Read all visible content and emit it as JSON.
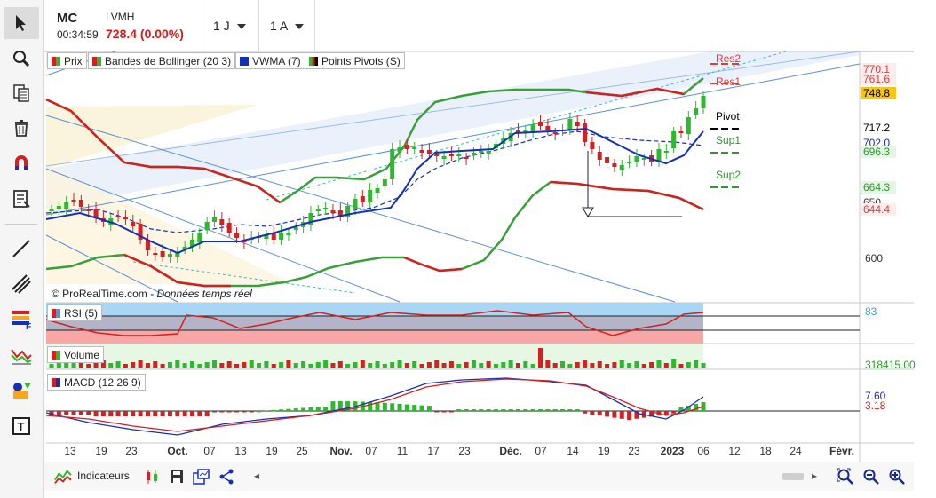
{
  "header": {
    "symbol": "MC",
    "time": "00:34:59",
    "name": "LVMH",
    "price": "728.4 (0.00%)",
    "period_interval": "1 J",
    "period_range": "1 A"
  },
  "legends": {
    "price": "Prix",
    "bollinger": "Bandes de Bollinger (20 3)",
    "vwma": "VWMA (7)",
    "pivots": "Points Pivots (S)",
    "rsi": "RSI (5)",
    "volume": "Volume",
    "macd": "MACD (12 26 9)"
  },
  "watermark": {
    "source": "© ProRealTime.com",
    "note": "- Données temps réel"
  },
  "price_axis": {
    "chips": [
      {
        "value": "770.1",
        "color": "#e23b3b",
        "bg": "#fdecec"
      },
      {
        "value": "761.6",
        "color": "#e23b3b",
        "bg": "#fdecec"
      },
      {
        "value": "748.8",
        "color": "#000000",
        "bg": "#f5c518"
      },
      {
        "value": "717.2",
        "color": "#000000",
        "bg": "#ffffff"
      },
      {
        "value": "702.0",
        "color": "#1c2fa8",
        "bg": "#ffffff"
      },
      {
        "value": "696.3",
        "color": "#2c9a2c",
        "bg": "#e6f6e6"
      },
      {
        "value": "664.3",
        "color": "#2c9a2c",
        "bg": "#e6f6e6"
      },
      {
        "value": "650",
        "color": "#333333",
        "bg": "#ffffff"
      },
      {
        "value": "644.4",
        "color": "#e23b3b",
        "bg": "#fdecec"
      }
    ],
    "tick_600": "600",
    "rsi_value": "83",
    "volume_value": "318415.00",
    "macd_value1": "7.60",
    "macd_value2": "3.18"
  },
  "pivot_labels": {
    "res2": "Res2",
    "res1": "Res1",
    "pivot": "Pivot",
    "sup1": "Sup1",
    "sup2": "Sup2"
  },
  "x_axis": [
    "13",
    "19",
    "23",
    "Oct.",
    "07",
    "13",
    "19",
    "25",
    "Nov.",
    "07",
    "11",
    "17",
    "23",
    "Déc.",
    "07",
    "14",
    "19",
    "23",
    "2023",
    "06",
    "12",
    "18",
    "24",
    "Févr."
  ],
  "bottom": {
    "indicators_label": "Indicateurs"
  },
  "icons": [
    "cursor-icon",
    "zoom-icon",
    "copy-icon",
    "trash-icon",
    "magnet-icon",
    "properties-icon",
    "line-tool-icon",
    "channel-tool-icon",
    "fibonacci-icon",
    "indicator-tool-icon",
    "shapes-icon",
    "text-tool-icon"
  ],
  "colors": {
    "up": "#2db82d",
    "down": "#d42020",
    "vwma": "#1530b8",
    "bollinger_up": "#3a9e3a",
    "bollinger_low": "#d42020"
  }
}
